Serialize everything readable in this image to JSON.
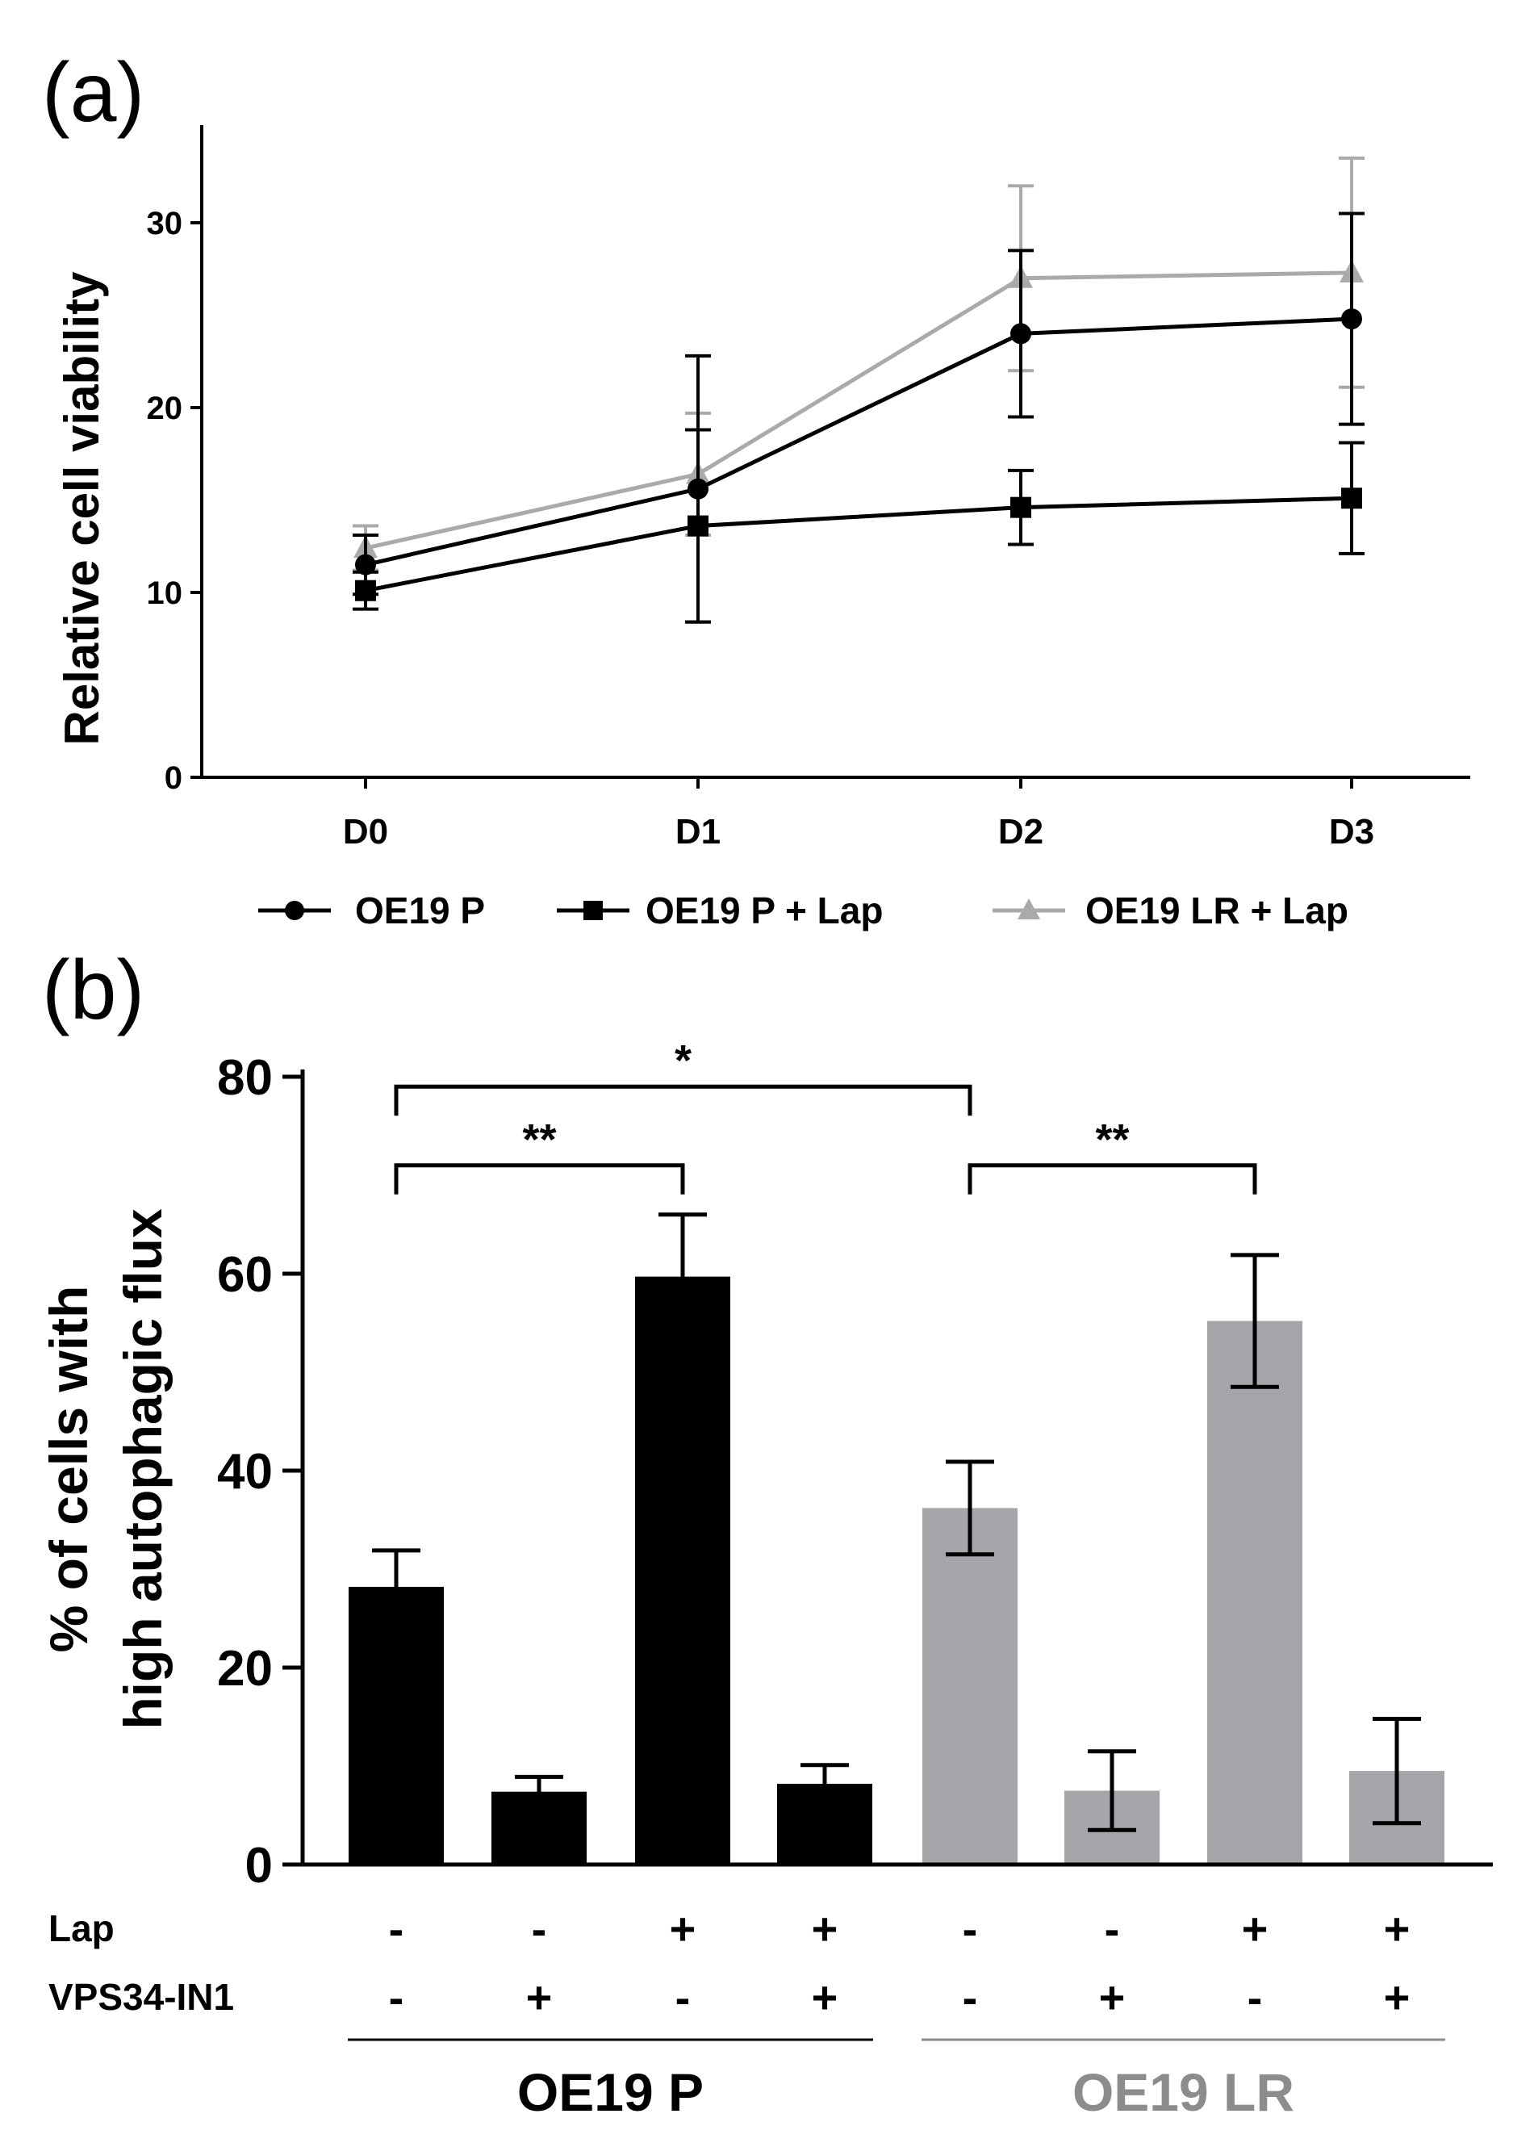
{
  "chart_data": [
    {
      "panel_label": "(a)",
      "type": "line",
      "title": "",
      "xlabel": "",
      "ylabel": "Relative cell viability",
      "categories": [
        "D0",
        "D1",
        "D2",
        "D3"
      ],
      "ylim": [
        0,
        35
      ],
      "yticks": [
        "0",
        "10",
        "20",
        "30"
      ],
      "grid": false,
      "legend_position": "bottom",
      "series": [
        {
          "name": "OE19 P",
          "marker": "circle",
          "color": "#000000",
          "values": [
            11.5,
            15.6,
            24.0,
            24.8
          ],
          "errors": [
            1.6,
            7.2,
            4.5,
            5.7
          ]
        },
        {
          "name": "OE19 P + Lap",
          "marker": "square",
          "color": "#000000",
          "values": [
            10.1,
            13.6,
            14.6,
            15.1
          ],
          "errors": [
            1.0,
            5.2,
            2.0,
            3.0
          ]
        },
        {
          "name": "OE19 LR + Lap",
          "marker": "triangle",
          "color": "#aaaaaa",
          "values": [
            12.4,
            16.4,
            27.0,
            27.3
          ],
          "errors": [
            1.2,
            3.3,
            5.0,
            6.2
          ]
        }
      ]
    },
    {
      "panel_label": "(b)",
      "type": "bar",
      "title": "",
      "xlabel": "",
      "ylabel_lines": [
        "% of cells with",
        "high autophagic flux"
      ],
      "ylim": [
        0,
        80
      ],
      "yticks": [
        "0",
        "20",
        "40",
        "60",
        "80"
      ],
      "grid": false,
      "values": [
        28.2,
        7.4,
        59.7,
        8.2,
        36.2,
        7.5,
        55.2,
        9.5
      ],
      "errors": [
        3.7,
        1.5,
        6.3,
        1.9,
        4.7,
        4.0,
        6.7,
        5.3
      ],
      "bar_colors": [
        "#000000",
        "#000000",
        "#000000",
        "#000000",
        "#a6a5aa",
        "#a6a5aa",
        "#a6a5aa",
        "#a6a5aa"
      ],
      "factor_rows": [
        {
          "label": "Lap",
          "values": [
            "-",
            "-",
            "+",
            "+",
            "-",
            "-",
            "+",
            "+"
          ]
        },
        {
          "label": "VPS34-IN1",
          "values": [
            "-",
            "+",
            "-",
            "+",
            "-",
            "+",
            "-",
            "+"
          ]
        }
      ],
      "groups": [
        {
          "label": "OE19 P",
          "color": "#000000",
          "bars": [
            0,
            3
          ]
        },
        {
          "label": "OE19 LR",
          "color": "#8c8c8c",
          "bars": [
            4,
            7
          ]
        }
      ],
      "significance": [
        {
          "from": 0,
          "to": 4,
          "label": "*",
          "level": 79
        },
        {
          "from": 0,
          "to": 2,
          "label": "**",
          "level": 71
        },
        {
          "from": 4,
          "to": 6,
          "label": "**",
          "level": 71
        }
      ]
    }
  ]
}
